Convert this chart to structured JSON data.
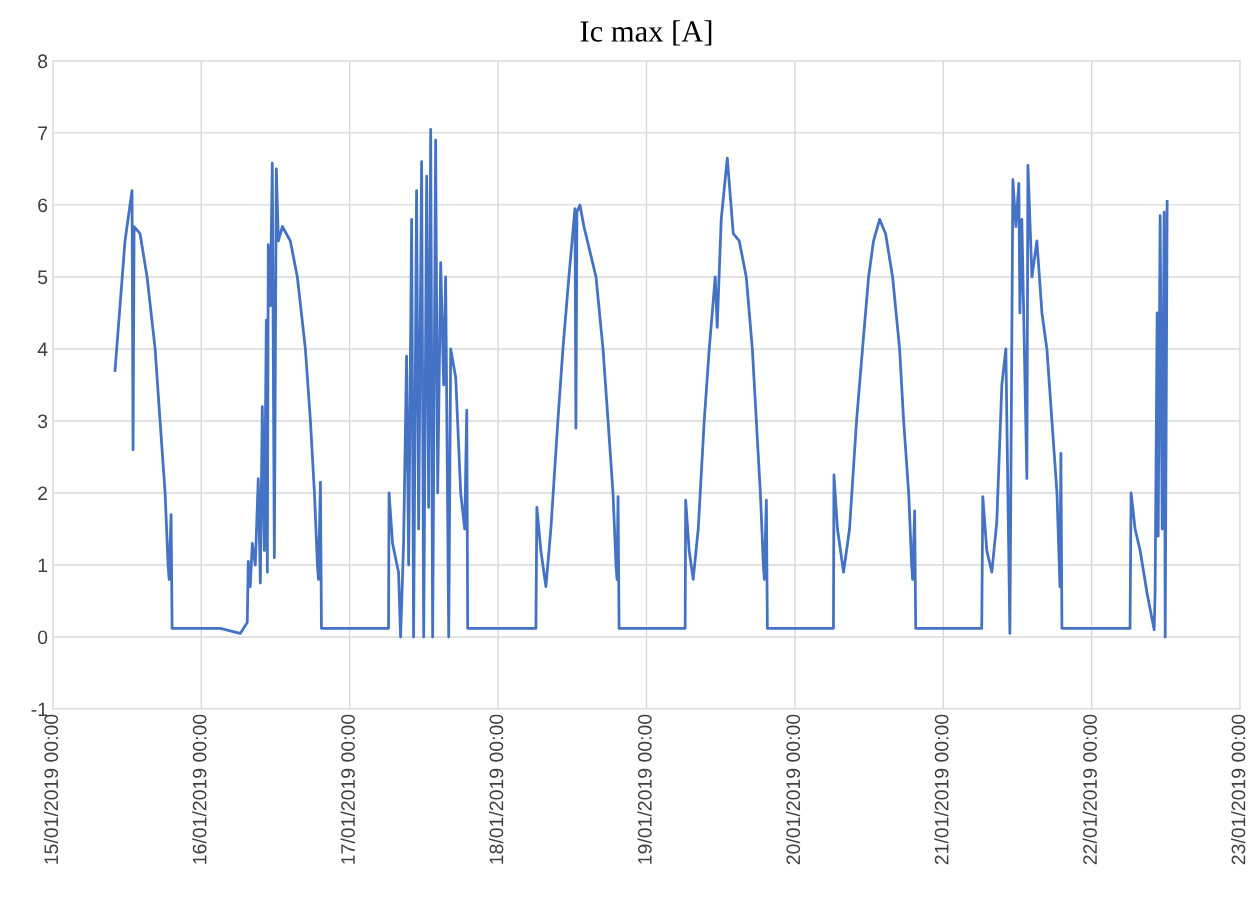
{
  "chart_data": {
    "type": "line",
    "title": "Ic max [A]",
    "x": [
      "2019-01-15T10:03",
      "2019-01-15T11:40",
      "2019-01-15T12:48",
      "2019-01-15T12:58",
      "2019-01-15T13:08",
      "2019-01-15T14:06",
      "2019-01-15T15:14",
      "2019-01-15T16:32",
      "2019-01-15T17:20",
      "2019-01-15T18:09",
      "2019-01-15T18:38",
      "2019-01-15T18:48",
      "2019-01-15T19:07",
      "2019-01-15T19:17",
      "2019-01-16T03:04",
      "2019-01-16T06:18",
      "2019-01-16T07:26",
      "2019-01-16T07:36",
      "2019-01-16T07:55",
      "2019-01-16T08:15",
      "2019-01-16T08:44",
      "2019-01-16T09:13",
      "2019-01-16T09:33",
      "2019-01-16T09:52",
      "2019-01-16T10:12",
      "2019-01-16T10:31",
      "2019-01-16T10:41",
      "2019-01-16T10:50",
      "2019-01-16T11:10",
      "2019-01-16T11:29",
      "2019-01-16T11:49",
      "2019-01-16T12:08",
      "2019-01-16T12:28",
      "2019-01-16T13:07",
      "2019-01-16T14:24",
      "2019-01-16T15:32",
      "2019-01-16T16:50",
      "2019-01-16T17:39",
      "2019-01-16T18:18",
      "2019-01-16T18:47",
      "2019-01-16T18:57",
      "2019-01-16T19:16",
      "2019-01-16T19:26",
      "2019-01-17T06:17",
      "2019-01-17T06:22",
      "2019-01-17T06:56",
      "2019-01-17T07:54",
      "2019-01-17T08:14",
      "2019-01-17T08:43",
      "2019-01-17T09:12",
      "2019-01-17T09:32",
      "2019-01-17T10:01",
      "2019-01-17T10:20",
      "2019-01-17T10:49",
      "2019-01-17T11:09",
      "2019-01-17T11:38",
      "2019-01-17T11:58",
      "2019-01-17T12:27",
      "2019-01-17T12:46",
      "2019-01-17T13:06",
      "2019-01-17T13:25",
      "2019-01-17T13:54",
      "2019-01-17T14:14",
      "2019-01-17T14:43",
      "2019-01-17T15:12",
      "2019-01-17T15:31",
      "2019-01-17T16:01",
      "2019-01-17T16:20",
      "2019-01-17T17:09",
      "2019-01-17T17:57",
      "2019-01-17T18:36",
      "2019-01-17T18:56",
      "2019-01-17T19:05",
      "2019-01-18T06:07",
      "2019-01-18T06:16",
      "2019-01-18T06:55",
      "2019-01-18T07:44",
      "2019-01-18T08:32",
      "2019-01-18T09:40",
      "2019-01-18T10:29",
      "2019-01-18T11:27",
      "2019-01-18T12:26",
      "2019-01-18T12:35",
      "2019-01-18T12:45",
      "2019-01-18T13:14",
      "2019-01-18T13:53",
      "2019-01-18T15:50",
      "2019-01-18T16:58",
      "2019-01-18T17:47",
      "2019-01-18T18:35",
      "2019-01-18T19:04",
      "2019-01-18T19:14",
      "2019-01-18T19:24",
      "2019-01-18T19:34",
      "2019-01-19T06:15",
      "2019-01-19T06:20",
      "2019-01-19T06:54",
      "2019-01-19T07:33",
      "2019-01-19T08:22",
      "2019-01-19T09:20",
      "2019-01-19T10:09",
      "2019-01-19T11:07",
      "2019-01-19T11:26",
      "2019-01-19T12:05",
      "2019-01-19T13:04",
      "2019-01-19T14:02",
      "2019-01-19T15:00",
      "2019-01-19T16:08",
      "2019-01-19T17:07",
      "2019-01-19T17:46",
      "2019-01-19T18:25",
      "2019-01-19T18:54",
      "2019-01-19T19:03",
      "2019-01-19T19:23",
      "2019-01-19T19:33",
      "2019-01-20T06:14",
      "2019-01-20T06:19",
      "2019-01-20T06:53",
      "2019-01-20T07:52",
      "2019-01-20T08:50",
      "2019-01-20T09:58",
      "2019-01-20T10:56",
      "2019-01-20T11:55",
      "2019-01-20T12:43",
      "2019-01-20T13:42",
      "2019-01-20T14:40",
      "2019-01-20T15:48",
      "2019-01-20T16:56",
      "2019-01-20T17:35",
      "2019-01-20T18:24",
      "2019-01-20T18:53",
      "2019-01-20T19:02",
      "2019-01-20T19:22",
      "2019-01-20T19:32",
      "2019-01-21T06:13",
      "2019-01-21T06:23",
      "2019-01-21T07:02",
      "2019-01-21T07:51",
      "2019-01-21T08:39",
      "2019-01-21T09:28",
      "2019-01-21T10:07",
      "2019-01-21T10:46",
      "2019-01-21T11:15",
      "2019-01-21T11:44",
      "2019-01-21T12:13",
      "2019-01-21T12:23",
      "2019-01-21T12:42",
      "2019-01-21T13:31",
      "2019-01-21T13:41",
      "2019-01-21T14:20",
      "2019-01-21T15:08",
      "2019-01-21T15:57",
      "2019-01-21T16:45",
      "2019-01-21T17:34",
      "2019-01-21T18:23",
      "2019-01-21T18:52",
      "2019-01-21T19:01",
      "2019-01-21T19:11",
      "2019-01-22T06:12",
      "2019-01-22T06:22",
      "2019-01-22T07:01",
      "2019-01-22T07:50",
      "2019-01-22T08:58",
      "2019-01-22T10:06",
      "2019-01-22T10:15",
      "2019-01-22T10:35",
      "2019-01-22T10:45",
      "2019-01-22T11:04",
      "2019-01-22T11:24",
      "2019-01-22T11:43",
      "2019-01-22T11:53",
      "2019-01-22T12:12"
    ],
    "series": [
      {
        "color": "#4472c4",
        "values": [
          3.7,
          5.5,
          6.2,
          2.6,
          5.7,
          5.6,
          5.0,
          4.0,
          3.0,
          2.0,
          1.0,
          0.8,
          1.7,
          0.12,
          0.12,
          0.05,
          0.2,
          1.05,
          0.7,
          1.3,
          1.0,
          2.2,
          0.75,
          3.2,
          1.2,
          4.4,
          0.9,
          5.45,
          4.6,
          6.58,
          1.1,
          6.5,
          5.5,
          5.7,
          5.5,
          5.0,
          4.0,
          3.0,
          2.0,
          1.0,
          0.8,
          2.15,
          0.12,
          0.12,
          2.0,
          1.3,
          0.9,
          0.0,
          1.3,
          3.9,
          1.0,
          5.8,
          0.0,
          6.2,
          1.5,
          6.6,
          0.0,
          6.4,
          1.8,
          7.05,
          0.0,
          6.9,
          2.0,
          5.2,
          3.5,
          5.0,
          0.0,
          4.0,
          3.6,
          2.0,
          1.5,
          3.15,
          0.12,
          0.12,
          1.8,
          1.2,
          0.7,
          1.5,
          3.0,
          4.0,
          5.0,
          5.95,
          2.9,
          5.9,
          6.0,
          5.7,
          5.0,
          4.0,
          3.0,
          2.0,
          1.0,
          0.8,
          1.95,
          0.12,
          0.12,
          1.9,
          1.2,
          0.8,
          1.5,
          3.0,
          4.0,
          5.0,
          4.3,
          5.8,
          6.65,
          5.6,
          5.5,
          5.0,
          4.0,
          3.0,
          2.0,
          1.0,
          0.8,
          1.9,
          0.12,
          0.12,
          2.25,
          1.5,
          0.9,
          1.5,
          3.0,
          4.0,
          5.0,
          5.5,
          5.8,
          5.6,
          5.0,
          4.0,
          3.0,
          2.0,
          1.0,
          0.8,
          1.75,
          0.12,
          0.12,
          1.95,
          1.2,
          0.9,
          1.6,
          3.5,
          4.0,
          0.05,
          6.35,
          5.7,
          6.3,
          4.5,
          5.8,
          2.2,
          6.55,
          5.0,
          5.5,
          4.5,
          4.0,
          3.0,
          2.0,
          0.7,
          2.55,
          0.12,
          0.12,
          2.0,
          1.5,
          1.2,
          0.6,
          0.1,
          0.6,
          4.5,
          1.4,
          5.85,
          1.5,
          5.9,
          0.0,
          6.05
        ]
      }
    ],
    "xlim": [
      "2019-01-15",
      "2019-01-23"
    ],
    "xticks": [
      {
        "value": "2019-01-15",
        "label": "15/01/2019 00:00"
      },
      {
        "value": "2019-01-16",
        "label": "16/01/2019 00:00"
      },
      {
        "value": "2019-01-17",
        "label": "17/01/2019 00:00"
      },
      {
        "value": "2019-01-18",
        "label": "18/01/2019 00:00"
      },
      {
        "value": "2019-01-19",
        "label": "19/01/2019 00:00"
      },
      {
        "value": "2019-01-20",
        "label": "20/01/2019 00:00"
      },
      {
        "value": "2019-01-21",
        "label": "21/01/2019 00:00"
      },
      {
        "value": "2019-01-22",
        "label": "22/01/2019 00:00"
      },
      {
        "value": "2019-01-23",
        "label": "23/01/2019 00:00"
      }
    ],
    "ylim": [
      -1,
      8
    ],
    "yticks": [
      -1,
      0,
      1,
      2,
      3,
      4,
      5,
      6,
      7,
      8
    ],
    "grid": true,
    "line_style": "solid"
  }
}
